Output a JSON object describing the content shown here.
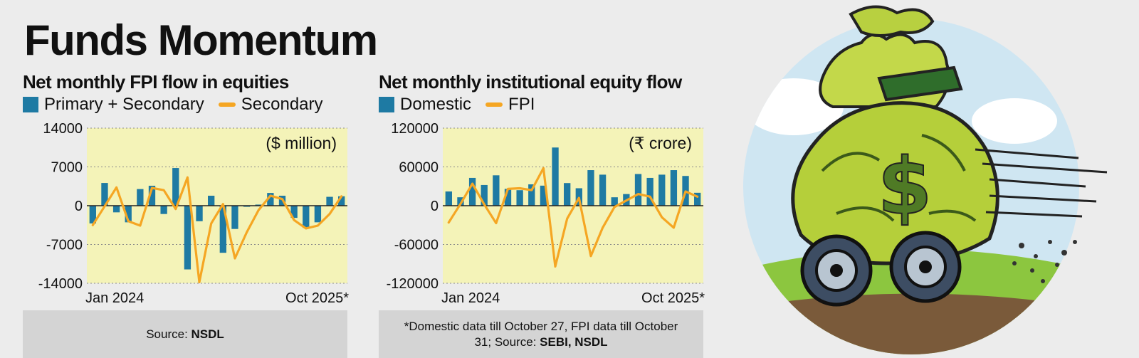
{
  "title": "Funds Momentum",
  "panels": [
    {
      "subtitle": "Net monthly FPI flow in equities",
      "legend": [
        {
          "label": "Primary + Secondary",
          "kind": "bar"
        },
        {
          "label": "Secondary",
          "kind": "line"
        }
      ],
      "unit_label": "($ million)",
      "source_text": "Source: ",
      "source_bold": "NSDL"
    },
    {
      "subtitle": "Net monthly institutional equity flow",
      "legend": [
        {
          "label": "Domestic",
          "kind": "bar"
        },
        {
          "label": "FPI",
          "kind": "line"
        }
      ],
      "unit_label": "(₹ crore)",
      "note": "*Domestic data till October 27, FPI data till October 31;",
      "source_text": "Source: ",
      "source_bold": "SEBI, NSDL"
    }
  ],
  "chart_data": [
    {
      "type": "bar",
      "categories": [
        "Jan 2024",
        "Feb 2024",
        "Mar 2024",
        "Apr 2024",
        "May 2024",
        "Jun 2024",
        "Jul 2024",
        "Aug 2024",
        "Sep 2024",
        "Oct 2024",
        "Nov 2024",
        "Dec 2024",
        "Jan 2025",
        "Feb 2025",
        "Mar 2025",
        "Apr 2025",
        "May 2025",
        "Jun 2025",
        "Jul 2025",
        "Aug 2025",
        "Sep 2025",
        "Oct 2025"
      ],
      "tick_labels": [
        "Jan 2024",
        "Oct 2025*"
      ],
      "ylim": [
        -14000,
        14000
      ],
      "yticks": [
        "14000",
        "7000",
        "0",
        "-7000",
        "-14000"
      ],
      "series": [
        {
          "name": "Primary + Secondary",
          "kind": "bar",
          "color": "#1e7aa3",
          "values": [
            -3200,
            4100,
            -1200,
            -3000,
            3000,
            3600,
            -1500,
            6800,
            -11500,
            -2800,
            1800,
            -8500,
            -4200,
            -200,
            200,
            2300,
            1800,
            -2200,
            -4000,
            -3000,
            1600,
            1700
          ]
        },
        {
          "name": "Secondary",
          "kind": "line",
          "color": "#f5a623",
          "values": [
            -3500,
            -100,
            3300,
            -2800,
            -3600,
            3200,
            2800,
            -600,
            5100,
            -13800,
            -3200,
            300,
            -9500,
            -4800,
            -800,
            1800,
            1200,
            -2600,
            -4100,
            -3600,
            -1500,
            1700
          ]
        }
      ]
    },
    {
      "type": "bar",
      "categories": [
        "Jan 2024",
        "Feb 2024",
        "Mar 2024",
        "Apr 2024",
        "May 2024",
        "Jun 2024",
        "Jul 2024",
        "Aug 2024",
        "Sep 2024",
        "Oct 2024",
        "Nov 2024",
        "Dec 2024",
        "Jan 2025",
        "Feb 2025",
        "Mar 2025",
        "Apr 2025",
        "May 2025",
        "Jun 2025",
        "Jul 2025",
        "Aug 2025",
        "Sep 2025",
        "Oct 2025"
      ],
      "tick_labels": [
        "Jan 2024",
        "Oct 2025*"
      ],
      "ylim": [
        -120000,
        120000
      ],
      "yticks": [
        "120000",
        "60000",
        "0",
        "-60000",
        "-120000"
      ],
      "series": [
        {
          "name": "Domestic",
          "kind": "bar",
          "color": "#1e7aa3",
          "values": [
            22000,
            13000,
            43000,
            32000,
            47000,
            26000,
            24000,
            33000,
            31000,
            90000,
            35000,
            27000,
            55000,
            48000,
            13000,
            18000,
            49000,
            43000,
            48000,
            55000,
            46000,
            20000
          ]
        },
        {
          "name": "FPI",
          "kind": "line",
          "color": "#f5a623",
          "values": [
            -26000,
            3000,
            34000,
            2000,
            -27000,
            26000,
            27000,
            24000,
            58000,
            -94000,
            -20000,
            12000,
            -78000,
            -34000,
            -2000,
            8000,
            18000,
            14000,
            -18000,
            -34000,
            22000,
            14000
          ]
        }
      ]
    }
  ]
}
